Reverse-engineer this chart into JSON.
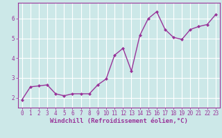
{
  "x": [
    0,
    1,
    2,
    3,
    4,
    5,
    6,
    7,
    8,
    9,
    10,
    11,
    12,
    13,
    14,
    15,
    16,
    17,
    18,
    19,
    20,
    21,
    22,
    23
  ],
  "y": [
    1.9,
    2.55,
    2.6,
    2.65,
    2.2,
    2.1,
    2.2,
    2.2,
    2.2,
    2.65,
    2.95,
    4.15,
    4.5,
    3.35,
    5.15,
    6.0,
    6.35,
    5.45,
    5.05,
    4.95,
    5.45,
    5.6,
    5.7,
    6.2
  ],
  "line_color": "#993399",
  "marker": "D",
  "marker_size": 2.0,
  "bg_color": "#cce8e8",
  "grid_color": "#ffffff",
  "axis_color": "#993399",
  "xlabel": "Windchill (Refroidissement éolien,°C)",
  "xlabel_color": "#993399",
  "ylim": [
    1.5,
    6.8
  ],
  "yticks": [
    2,
    3,
    4,
    5,
    6
  ],
  "xlim": [
    -0.5,
    23.5
  ],
  "xticks": [
    0,
    1,
    2,
    3,
    4,
    5,
    6,
    7,
    8,
    9,
    10,
    11,
    12,
    13,
    14,
    15,
    16,
    17,
    18,
    19,
    20,
    21,
    22,
    23
  ],
  "tick_fontsize": 5.5,
  "xlabel_fontsize": 6.5,
  "linewidth": 1.0
}
